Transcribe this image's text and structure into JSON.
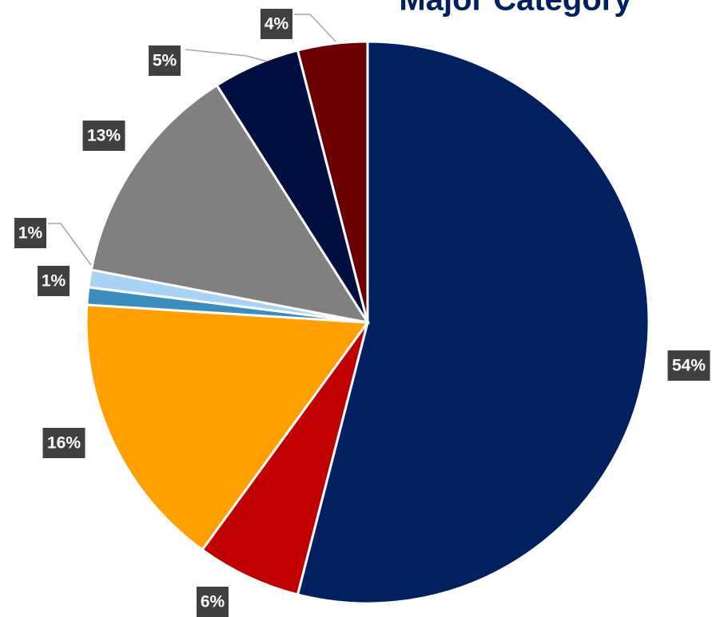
{
  "chart_data": {
    "type": "pie",
    "title": "Major Category",
    "categories": [
      null,
      null,
      null,
      null,
      null,
      null,
      null,
      null
    ],
    "values": [
      54,
      6,
      16,
      1,
      1,
      13,
      5,
      4
    ],
    "value_labels": [
      "54%",
      "6%",
      "16%",
      "1%",
      "1%",
      "13%",
      "5%",
      "4%"
    ],
    "colors": [
      "#002060",
      "#c00000",
      "#ffa000",
      "#3b8dbd",
      "#a9d2f5",
      "#808080",
      "#000f3f",
      "#6b0000"
    ]
  }
}
